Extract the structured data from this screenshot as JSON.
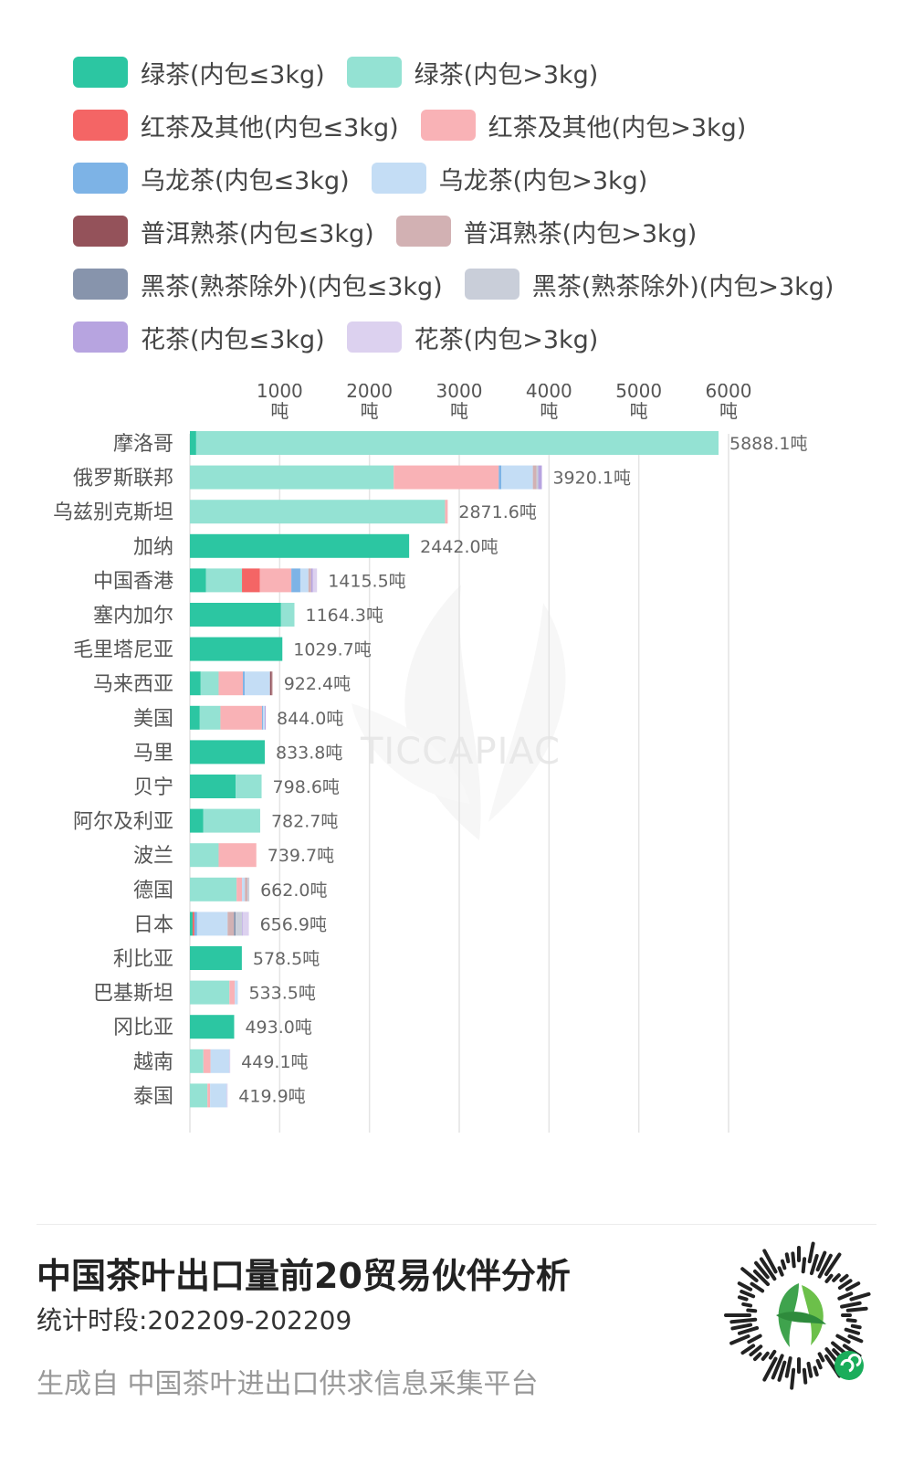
{
  "legend": [
    {
      "label": "绿茶(内包≤3kg)",
      "color": "#2cc6a2"
    },
    {
      "label": "绿茶(内包>3kg)",
      "color": "#94e2d3"
    },
    {
      "label": "红茶及其他(内包≤3kg)",
      "color": "#f46565"
    },
    {
      "label": "红茶及其他(内包>3kg)",
      "color": "#f9b2b6"
    },
    {
      "label": "乌龙茶(内包≤3kg)",
      "color": "#7db3e6"
    },
    {
      "label": "乌龙茶(内包>3kg)",
      "color": "#c4ddf5"
    },
    {
      "label": "普洱熟茶(内包≤3kg)",
      "color": "#94525a"
    },
    {
      "label": "普洱熟茶(内包>3kg)",
      "color": "#d2b1b3"
    },
    {
      "label": "黑茶(熟茶除外)(内包≤3kg)",
      "color": "#8794ac"
    },
    {
      "label": "黑茶(熟茶除外)(内包>3kg)",
      "color": "#c9ced9"
    },
    {
      "label": "花茶(内包≤3kg)",
      "color": "#b7a4e0"
    },
    {
      "label": "花茶(内包>3kg)",
      "color": "#dcd1ef"
    }
  ],
  "chart_data": {
    "type": "bar",
    "orientation": "horizontal",
    "stacked": true,
    "xlim": [
      0,
      6000
    ],
    "x_ticks": [
      {
        "value": 1000,
        "label": "1000",
        "unit": "吨"
      },
      {
        "value": 2000,
        "label": "2000",
        "unit": "吨"
      },
      {
        "value": 3000,
        "label": "3000",
        "unit": "吨"
      },
      {
        "value": 4000,
        "label": "4000",
        "unit": "吨"
      },
      {
        "value": 5000,
        "label": "5000",
        "unit": "吨"
      },
      {
        "value": 6000,
        "label": "6000",
        "unit": "吨"
      }
    ],
    "grid": true,
    "categories": [
      "摩洛哥",
      "俄罗斯联邦",
      "乌兹别克斯坦",
      "加纳",
      "中国香港",
      "塞内加尔",
      "毛里塔尼亚",
      "马来西亚",
      "美国",
      "马里",
      "贝宁",
      "阿尔及利亚",
      "波兰",
      "德国",
      "日本",
      "利比亚",
      "巴基斯坦",
      "冈比亚",
      "越南",
      "泰国"
    ],
    "totals": [
      5888.1,
      3920.1,
      2871.6,
      2442.0,
      1415.5,
      1164.3,
      1029.7,
      922.4,
      844.0,
      833.8,
      798.6,
      782.7,
      739.7,
      662.0,
      656.9,
      578.5,
      533.5,
      493.0,
      449.1,
      419.9
    ],
    "total_labels": [
      "5888.1吨",
      "3920.1吨",
      "2871.6吨",
      "2442.0吨",
      "1415.5吨",
      "1164.3吨",
      "1029.7吨",
      "922.4吨",
      "844.0吨",
      "833.8吨",
      "798.6吨",
      "782.7吨",
      "739.7吨",
      "662.0吨",
      "656.9吨",
      "578.5吨",
      "533.5吨",
      "493.0吨",
      "449.1吨",
      "419.9吨"
    ],
    "series": [
      {
        "name": "绿茶(内包≤3kg)",
        "values": [
          70,
          0,
          0,
          2442.0,
          180,
          1015,
          1029.7,
          120,
          110,
          833.8,
          510,
          150,
          0,
          0,
          30,
          578.5,
          0,
          493.0,
          0,
          0
        ]
      },
      {
        "name": "绿茶(内包>3kg)",
        "values": [
          5818.1,
          2270,
          2841.6,
          0,
          400,
          149.3,
          0,
          200,
          230,
          0,
          288.6,
          632.7,
          320,
          520,
          0,
          0,
          440,
          0,
          150,
          195
        ]
      },
      {
        "name": "红茶及其他(内包≤3kg)",
        "values": [
          0,
          0,
          0,
          0,
          200,
          0,
          0,
          0,
          0,
          0,
          0,
          0,
          0,
          0,
          20,
          0,
          0,
          0,
          0,
          0
        ]
      },
      {
        "name": "红茶及其他(内包>3kg)",
        "values": [
          0,
          1170,
          30,
          0,
          350,
          0,
          0,
          270,
          464,
          0,
          0,
          0,
          419.7,
          60,
          0,
          0,
          60,
          0,
          80,
          30
        ]
      },
      {
        "name": "乌龙茶(内包≤3kg)",
        "values": [
          0,
          30,
          0,
          0,
          100,
          0,
          0,
          20,
          10,
          0,
          0,
          0,
          0,
          0,
          30,
          0,
          0,
          0,
          0,
          0
        ]
      },
      {
        "name": "乌龙茶(内包>3kg)",
        "values": [
          0,
          350,
          0,
          0,
          90,
          0,
          0,
          282.4,
          20,
          0,
          0,
          0,
          0,
          32,
          340,
          0,
          33.5,
          0,
          209.1,
          184.9
        ]
      },
      {
        "name": "普洱熟茶(内包≤3kg)",
        "values": [
          0,
          0,
          0,
          0,
          0,
          0,
          0,
          20,
          0,
          0,
          0,
          0,
          0,
          0,
          0,
          0,
          0,
          0,
          0,
          0
        ]
      },
      {
        "name": "普洱熟茶(内包>3kg)",
        "values": [
          0,
          40,
          0,
          0,
          30,
          0,
          0,
          10,
          0,
          0,
          0,
          0,
          0,
          30,
          70,
          0,
          0,
          0,
          0,
          0
        ]
      },
      {
        "name": "黑茶(熟茶除外)(内包≤3kg)",
        "values": [
          0,
          0,
          0,
          0,
          0,
          0,
          0,
          0,
          0,
          0,
          0,
          0,
          0,
          0,
          20,
          0,
          0,
          0,
          0,
          0
        ]
      },
      {
        "name": "黑茶(熟茶除外)(内包>3kg)",
        "values": [
          0,
          20,
          0,
          0,
          0,
          0,
          0,
          0,
          0,
          0,
          0,
          0,
          0,
          20,
          70,
          0,
          0,
          0,
          0,
          0
        ]
      },
      {
        "name": "花茶(内包≤3kg)",
        "values": [
          0,
          40.1,
          0,
          0,
          20,
          0,
          0,
          0,
          10,
          0,
          0,
          0,
          0,
          0,
          6.9,
          0,
          0,
          0,
          0,
          0
        ]
      },
      {
        "name": "花茶(内包>3kg)",
        "values": [
          0,
          0,
          0,
          0,
          45.5,
          0,
          0,
          0,
          0,
          0,
          0,
          0,
          0,
          0,
          70,
          0,
          0,
          0,
          10,
          10
        ]
      }
    ]
  },
  "watermark": {
    "text": "TICCAPIAC"
  },
  "footer": {
    "title": "中国茶叶出口量前20贸易伙伴分析",
    "period": "统计时段:202209-202209",
    "source": "生成自 中国茶叶进出口供求信息采集平台"
  }
}
